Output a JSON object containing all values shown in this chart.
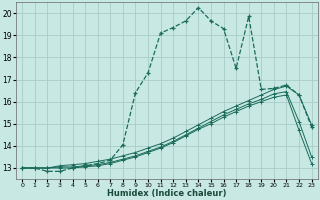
{
  "xlabel": "Humidex (Indice chaleur)",
  "background_color": "#c8e8e4",
  "grid_color": "#a8ccc8",
  "line_color": "#1a6b5a",
  "xlim": [
    -0.5,
    23.5
  ],
  "ylim": [
    12.5,
    20.5
  ],
  "xticks": [
    0,
    1,
    2,
    3,
    4,
    5,
    6,
    7,
    8,
    9,
    10,
    11,
    12,
    13,
    14,
    15,
    16,
    17,
    18,
    19,
    20,
    21,
    22,
    23
  ],
  "yticks": [
    13,
    14,
    15,
    16,
    17,
    18,
    19,
    20
  ],
  "line1_x": [
    0,
    1,
    2,
    3,
    4,
    5,
    6,
    7,
    8,
    9,
    10,
    11,
    12,
    13,
    14,
    15,
    16,
    17,
    18,
    19,
    20,
    21,
    22,
    23
  ],
  "line1_y": [
    13.0,
    13.0,
    12.85,
    12.85,
    13.0,
    13.1,
    13.2,
    13.35,
    14.05,
    16.4,
    17.3,
    19.1,
    19.35,
    19.65,
    20.25,
    19.65,
    19.3,
    17.5,
    19.85,
    16.55,
    16.6,
    16.75,
    16.3,
    14.85
  ],
  "line2_x": [
    0,
    1,
    2,
    3,
    4,
    5,
    6,
    7,
    8,
    9,
    10,
    11,
    12,
    13,
    14,
    15,
    16,
    17,
    18,
    19,
    20,
    21,
    22,
    23
  ],
  "line2_y": [
    13.0,
    13.0,
    13.0,
    13.1,
    13.15,
    13.2,
    13.3,
    13.4,
    13.55,
    13.7,
    13.9,
    14.1,
    14.35,
    14.65,
    14.95,
    15.25,
    15.55,
    15.8,
    16.05,
    16.3,
    16.55,
    16.7,
    16.3,
    14.95
  ],
  "line3_x": [
    0,
    1,
    2,
    3,
    4,
    5,
    6,
    7,
    8,
    9,
    10,
    11,
    12,
    13,
    14,
    15,
    16,
    17,
    18,
    19,
    20,
    21,
    22,
    23
  ],
  "line3_y": [
    13.0,
    13.0,
    13.0,
    13.05,
    13.05,
    13.1,
    13.15,
    13.25,
    13.4,
    13.55,
    13.75,
    13.95,
    14.2,
    14.5,
    14.8,
    15.1,
    15.4,
    15.65,
    15.9,
    16.1,
    16.35,
    16.45,
    15.1,
    13.5
  ],
  "line4_x": [
    0,
    1,
    2,
    3,
    4,
    5,
    6,
    7,
    8,
    9,
    10,
    11,
    12,
    13,
    14,
    15,
    16,
    17,
    18,
    19,
    20,
    21,
    22,
    23
  ],
  "line4_y": [
    13.0,
    13.0,
    13.0,
    13.0,
    13.0,
    13.05,
    13.1,
    13.2,
    13.35,
    13.5,
    13.7,
    13.9,
    14.15,
    14.45,
    14.75,
    15.0,
    15.3,
    15.55,
    15.8,
    16.0,
    16.2,
    16.3,
    14.7,
    13.2
  ]
}
